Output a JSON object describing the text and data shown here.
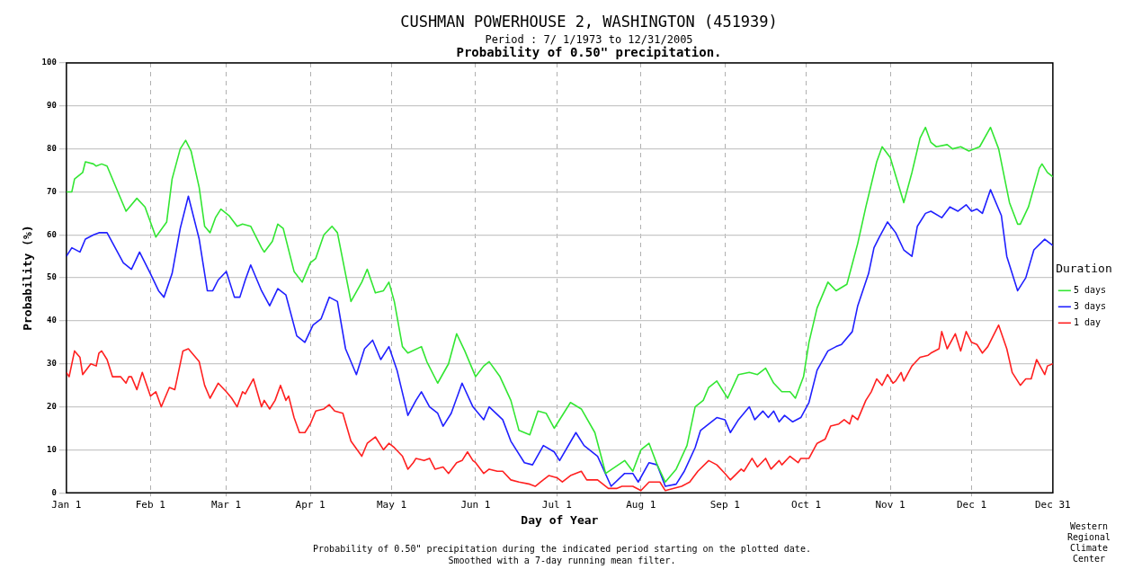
{
  "chart_data": {
    "type": "line",
    "title": "CUSHMAN POWERHOUSE 2, WASHINGTON    (451939)",
    "subtitle": "Period : 7/ 1/1973 to 12/31/2005",
    "annotations": [
      "Probability of 0.50\" precipitation.",
      "Probability of 0.50\" precipitation during the indicated period starting on the plotted date. Smoothed with a 7-day running mean filter.",
      "Western Regional Climate Center"
    ],
    "xlabel": "Day of Year",
    "ylabel": "Probability (%)",
    "legend_title": "Duration",
    "legend": "right",
    "grid": true,
    "xlim": [
      "--01-01",
      "--12-31"
    ],
    "xticks": [
      {
        "value": "--01-01",
        "label": "Jan 1"
      },
      {
        "value": "--02-01",
        "label": "Feb 1"
      },
      {
        "value": "--03-01",
        "label": "Mar 1"
      },
      {
        "value": "--04-01",
        "label": "Apr 1"
      },
      {
        "value": "--05-01",
        "label": "May 1"
      },
      {
        "value": "--06-01",
        "label": "Jun 1"
      },
      {
        "value": "--07-01",
        "label": "Jul 1"
      },
      {
        "value": "--08-01",
        "label": "Aug 1"
      },
      {
        "value": "--09-01",
        "label": "Sep 1"
      },
      {
        "value": "--10-01",
        "label": "Oct 1"
      },
      {
        "value": "--11-01",
        "label": "Nov 1"
      },
      {
        "value": "--12-01",
        "label": "Dec 1"
      },
      {
        "value": "--12-31",
        "label": "Dec 31"
      }
    ],
    "ylim": [
      0,
      100
    ],
    "yticks": [
      0,
      10,
      20,
      30,
      40,
      50,
      60,
      70,
      80,
      90,
      100
    ],
    "series": [
      {
        "name": "5 days",
        "color": "#33e633",
        "x": [
          "--01-01",
          "--01-03",
          "--01-04",
          "--01-07",
          "--01-08",
          "--01-11",
          "--01-12",
          "--01-14",
          "--01-16",
          "--01-20",
          "--01-23",
          "--01-27",
          "--01-30",
          "--02-03",
          "--02-07",
          "--02-09",
          "--02-12",
          "--02-14",
          "--02-16",
          "--02-19",
          "--02-21",
          "--02-23",
          "--02-25",
          "--02-27",
          "--03-02",
          "--03-05",
          "--03-07",
          "--03-10",
          "--03-14",
          "--03-15",
          "--03-18",
          "--03-20",
          "--03-22",
          "--03-26",
          "--03-29",
          "--04-01",
          "--04-03",
          "--04-06",
          "--04-09",
          "--04-11",
          "--04-16",
          "--04-20",
          "--04-22",
          "--04-25",
          "--04-28",
          "--04-30",
          "--05-02",
          "--05-05",
          "--05-07",
          "--05-12",
          "--05-14",
          "--05-18",
          "--05-22",
          "--05-25",
          "--05-28",
          "--06-01",
          "--06-04",
          "--06-06",
          "--06-10",
          "--06-14",
          "--06-17",
          "--06-21",
          "--06-24",
          "--06-27",
          "--06-30",
          "--07-06",
          "--07-10",
          "--07-15",
          "--07-19",
          "--07-26",
          "--07-29",
          "--08-01",
          "--08-04",
          "--08-07",
          "--08-10",
          "--08-14",
          "--08-18",
          "--08-21",
          "--08-24",
          "--08-26",
          "--08-29",
          "--09-02",
          "--09-06",
          "--09-10",
          "--09-13",
          "--09-16",
          "--09-19",
          "--09-22",
          "--09-25",
          "--09-27",
          "--09-30",
          "--10-02",
          "--10-05",
          "--10-09",
          "--10-12",
          "--10-16",
          "--10-20",
          "--10-23",
          "--10-27",
          "--10-29",
          "--11-01",
          "--11-06",
          "--11-09",
          "--11-12",
          "--11-14",
          "--11-16",
          "--11-18",
          "--11-22",
          "--11-24",
          "--11-27",
          "--11-30",
          "--12-04",
          "--12-08",
          "--12-11",
          "--12-15",
          "--12-18",
          "--12-19",
          "--12-22",
          "--12-26",
          "--12-27",
          "--12-29",
          "--12-31"
        ],
        "values": [
          70,
          70,
          73,
          74.5,
          77,
          76.5,
          76,
          76.5,
          76,
          70,
          65.5,
          68.5,
          66.5,
          59.5,
          63,
          73,
          80,
          82,
          79.5,
          71,
          62,
          60.5,
          64,
          66,
          64.5,
          62,
          62.5,
          62,
          57,
          56,
          58.5,
          62.5,
          61.5,
          51.5,
          49,
          53.5,
          54.5,
          60,
          62,
          60.5,
          44.5,
          49,
          52,
          46.5,
          47,
          49,
          44.5,
          34,
          32.5,
          34,
          30.5,
          25.5,
          30,
          37,
          33,
          27,
          29.5,
          30.5,
          27,
          21.5,
          14.5,
          13.5,
          19,
          18.5,
          15,
          21,
          19.5,
          14,
          4.5,
          7.5,
          5,
          10,
          11.5,
          6.5,
          2.5,
          5.5,
          11,
          20,
          21.5,
          24.5,
          26,
          22,
          27.5,
          28,
          27.5,
          29,
          25.5,
          23.5,
          23.5,
          22,
          27,
          35,
          43,
          49,
          47,
          48.5,
          58,
          66.5,
          77,
          80.5,
          78,
          67.5,
          74.5,
          82.5,
          85,
          81.5,
          80.5,
          81,
          80,
          80.5,
          79.5,
          80.5,
          85,
          80,
          67.5,
          62.5,
          62.5,
          66.5,
          75.5,
          76.5,
          74.5,
          73.5
        ]
      },
      {
        "name": "3 days",
        "color": "#2020ff",
        "x": [
          "--01-01",
          "--01-03",
          "--01-06",
          "--01-08",
          "--01-11",
          "--01-13",
          "--01-16",
          "--01-19",
          "--01-22",
          "--01-25",
          "--01-28",
          "--02-01",
          "--02-04",
          "--02-06",
          "--02-09",
          "--02-12",
          "--02-15",
          "--02-19",
          "--02-22",
          "--02-24",
          "--02-26",
          "--03-01",
          "--03-04",
          "--03-06",
          "--03-08",
          "--03-10",
          "--03-14",
          "--03-17",
          "--03-20",
          "--03-23",
          "--03-27",
          "--03-30",
          "--04-02",
          "--04-05",
          "--04-08",
          "--04-11",
          "--04-14",
          "--04-18",
          "--04-21",
          "--04-24",
          "--04-27",
          "--04-30",
          "--05-03",
          "--05-07",
          "--05-10",
          "--05-12",
          "--05-15",
          "--05-18",
          "--05-20",
          "--05-23",
          "--05-27",
          "--05-31",
          "--06-04",
          "--06-06",
          "--06-11",
          "--06-14",
          "--06-19",
          "--06-22",
          "--06-26",
          "--06-30",
          "--07-02",
          "--07-08",
          "--07-11",
          "--07-16",
          "--07-21",
          "--07-26",
          "--07-29",
          "--07-31",
          "--08-04",
          "--08-07",
          "--08-10",
          "--08-14",
          "--08-17",
          "--08-21",
          "--08-23",
          "--08-25",
          "--08-29",
          "--09-01",
          "--09-03",
          "--09-06",
          "--09-10",
          "--09-12",
          "--09-15",
          "--09-17",
          "--09-19",
          "--09-21",
          "--09-23",
          "--09-26",
          "--09-29",
          "--10-02",
          "--10-05",
          "--10-09",
          "--10-12",
          "--10-14",
          "--10-18",
          "--10-20",
          "--10-24",
          "--10-26",
          "--10-28",
          "--10-31",
          "--11-03",
          "--11-06",
          "--11-09",
          "--11-11",
          "--11-14",
          "--11-16",
          "--11-20",
          "--11-23",
          "--11-26",
          "--11-29",
          "--12-01",
          "--12-03",
          "--12-05",
          "--12-08",
          "--12-12",
          "--12-14",
          "--12-18",
          "--12-21",
          "--12-24",
          "--12-28",
          "--12-31"
        ],
        "values": [
          55,
          57,
          56,
          59,
          60,
          60.5,
          60.5,
          57,
          53.5,
          52,
          56,
          51,
          47,
          45.5,
          51,
          61.5,
          69,
          59,
          47,
          47,
          49.5,
          51.5,
          45.5,
          45.5,
          49.5,
          53,
          47,
          43.5,
          47.5,
          46,
          36.5,
          35,
          39,
          40.5,
          45.5,
          44.5,
          33.5,
          27.5,
          33.5,
          35.5,
          31,
          34,
          28.5,
          18,
          21.5,
          23.5,
          20,
          18.5,
          15.5,
          18.5,
          25.5,
          20,
          17,
          20,
          17,
          12,
          7,
          6.5,
          11,
          9.5,
          7.5,
          14,
          11,
          8.5,
          1.5,
          4.5,
          4.5,
          2.5,
          7,
          6.5,
          1.5,
          2,
          5,
          10.5,
          14.5,
          15.5,
          17.5,
          17,
          14,
          17,
          20,
          17,
          19,
          17.5,
          19,
          16.5,
          18,
          16.5,
          17.5,
          21,
          28.5,
          33,
          34,
          34.5,
          37.5,
          43.5,
          51,
          57,
          59.5,
          63,
          60.5,
          56.5,
          55,
          62,
          65,
          65.5,
          64,
          66.5,
          65.5,
          67,
          65.5,
          66,
          65,
          70.5,
          64.5,
          55,
          47,
          50,
          56.5,
          59,
          57.5
        ]
      },
      {
        "name": "1 day",
        "color": "#ff2020",
        "x": [
          "--01-01",
          "--01-02",
          "--01-04",
          "--01-06",
          "--01-07",
          "--01-10",
          "--01-12",
          "--01-13",
          "--01-14",
          "--01-16",
          "--01-18",
          "--01-21",
          "--01-23",
          "--01-24",
          "--01-25",
          "--01-27",
          "--01-29",
          "--02-01",
          "--02-03",
          "--02-05",
          "--02-08",
          "--02-10",
          "--02-13",
          "--02-15",
          "--02-19",
          "--02-21",
          "--02-23",
          "--02-26",
          "--03-01",
          "--03-03",
          "--03-05",
          "--03-07",
          "--03-08",
          "--03-11",
          "--03-14",
          "--03-15",
          "--03-17",
          "--03-19",
          "--03-21",
          "--03-23",
          "--03-24",
          "--03-26",
          "--03-28",
          "--03-30",
          "--04-01",
          "--04-03",
          "--04-06",
          "--04-08",
          "--04-10",
          "--04-13",
          "--04-16",
          "--04-20",
          "--04-22",
          "--04-25",
          "--04-28",
          "--04-30",
          "--05-02",
          "--05-05",
          "--05-07",
          "--05-09",
          "--05-10",
          "--05-13",
          "--05-15",
          "--05-17",
          "--05-20",
          "--05-22",
          "--05-25",
          "--05-27",
          "--05-29",
          "--05-31",
          "--06-01",
          "--06-04",
          "--06-06",
          "--06-09",
          "--06-11",
          "--06-14",
          "--06-17",
          "--06-21",
          "--06-23",
          "--06-25",
          "--06-28",
          "--07-01",
          "--07-03",
          "--07-06",
          "--07-10",
          "--07-12",
          "--07-16",
          "--07-20",
          "--07-23",
          "--07-25",
          "--07-29",
          "--08-01",
          "--08-04",
          "--08-08",
          "--08-10",
          "--08-16",
          "--08-19",
          "--08-22",
          "--08-26",
          "--08-29",
          "--09-01",
          "--09-03",
          "--09-07",
          "--09-08",
          "--09-11",
          "--09-13",
          "--09-16",
          "--09-18",
          "--09-21",
          "--09-22",
          "--09-25",
          "--09-28",
          "--09-29",
          "--10-02",
          "--10-05",
          "--10-08",
          "--10-10",
          "--10-13",
          "--10-15",
          "--10-17",
          "--10-18",
          "--10-20",
          "--10-23",
          "--10-25",
          "--10-27",
          "--10-29",
          "--10-31",
          "--11-02",
          "--11-03",
          "--11-05",
          "--11-06",
          "--11-09",
          "--11-12",
          "--11-15",
          "--11-16",
          "--11-19",
          "--11-20",
          "--11-22",
          "--11-25",
          "--11-27",
          "--11-29",
          "--12-01",
          "--12-03",
          "--12-05",
          "--12-07",
          "--12-11",
          "--12-14",
          "--12-16",
          "--12-19",
          "--12-21",
          "--12-23",
          "--12-25",
          "--12-28",
          "--12-29",
          "--12-31"
        ],
        "values": [
          28,
          27,
          33,
          31.5,
          27.5,
          30,
          29.5,
          32.5,
          33,
          31,
          27,
          27,
          25.5,
          27,
          27,
          24,
          28,
          22.5,
          23.5,
          20,
          24.5,
          24,
          33,
          33.5,
          30.5,
          25,
          22,
          25.5,
          23.5,
          22,
          20,
          23.5,
          23,
          26.5,
          20,
          21.5,
          19.5,
          21.5,
          25,
          21.5,
          22.5,
          17.5,
          14,
          14,
          16,
          19,
          19.5,
          20.5,
          19,
          18.5,
          12,
          8.5,
          11.5,
          13,
          10,
          11.5,
          10.5,
          8.5,
          5.5,
          7,
          8,
          7.5,
          8,
          5.5,
          6,
          4.5,
          7,
          7.5,
          9.5,
          7.5,
          7,
          4.5,
          5.5,
          5,
          5,
          3,
          2.5,
          2,
          1.5,
          2.5,
          4,
          3.5,
          2.5,
          4,
          5,
          3,
          3,
          1,
          1,
          1.5,
          1.5,
          0.5,
          2.5,
          2.5,
          0.5,
          1.5,
          2.5,
          5,
          7.5,
          6.5,
          4.5,
          3,
          5.5,
          5,
          8,
          6,
          8,
          5.5,
          7.5,
          6.5,
          8.5,
          7,
          8,
          8,
          11.5,
          12.5,
          15.5,
          16,
          17,
          16,
          18,
          17,
          21.5,
          23.5,
          26.5,
          25,
          27.5,
          25.5,
          26,
          28,
          26,
          29.5,
          31.5,
          32,
          32.5,
          33.5,
          37.5,
          33.5,
          37,
          33,
          37.5,
          35,
          34.5,
          32.5,
          34,
          39,
          33.5,
          28,
          25,
          26.5,
          26.5,
          31,
          27.5,
          29.5,
          30
        ]
      }
    ]
  }
}
